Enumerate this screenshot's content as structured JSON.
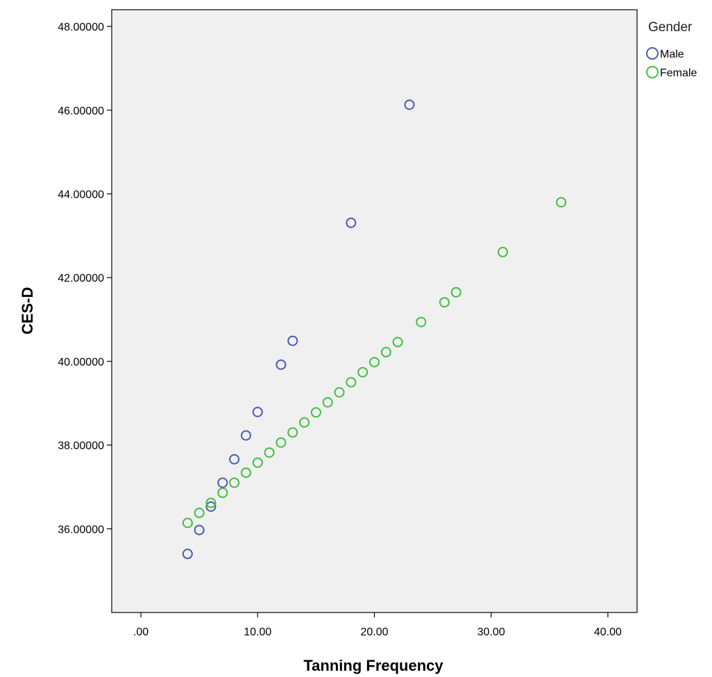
{
  "chart_data": {
    "type": "scatter",
    "xlabel": "Tanning Frequency",
    "ylabel": "CES-D",
    "xlim": [
      -2.5,
      42.5
    ],
    "ylim": [
      34.0,
      48.4
    ],
    "x_ticks": [
      ".00",
      "10.00",
      "20.00",
      "30.00",
      "40.00"
    ],
    "x_tick_values": [
      0,
      10,
      20,
      30,
      40
    ],
    "y_ticks": [
      "36.00000",
      "38.00000",
      "40.00000",
      "42.00000",
      "44.00000",
      "46.00000",
      "48.00000"
    ],
    "y_tick_values": [
      36,
      38,
      40,
      42,
      44,
      46,
      48
    ],
    "grid": false,
    "plot_background": "#f0f0f0",
    "legend": {
      "title": "Gender",
      "placement": "right"
    },
    "series": [
      {
        "name": "Male",
        "color": "#4b5aae",
        "points": [
          {
            "x": 4,
            "y": 35.4
          },
          {
            "x": 5,
            "y": 35.97
          },
          {
            "x": 6,
            "y": 36.53
          },
          {
            "x": 7,
            "y": 37.1
          },
          {
            "x": 8,
            "y": 37.66
          },
          {
            "x": 9,
            "y": 38.23
          },
          {
            "x": 10,
            "y": 38.79
          },
          {
            "x": 12,
            "y": 39.92
          },
          {
            "x": 13,
            "y": 40.49
          },
          {
            "x": 18,
            "y": 43.31
          },
          {
            "x": 23,
            "y": 46.13
          }
        ]
      },
      {
        "name": "Female",
        "color": "#3fbf3f",
        "points": [
          {
            "x": 4,
            "y": 36.14
          },
          {
            "x": 5,
            "y": 36.38
          },
          {
            "x": 6,
            "y": 36.62
          },
          {
            "x": 7,
            "y": 36.86
          },
          {
            "x": 8,
            "y": 37.1
          },
          {
            "x": 9,
            "y": 37.34
          },
          {
            "x": 10,
            "y": 37.58
          },
          {
            "x": 11,
            "y": 37.82
          },
          {
            "x": 12,
            "y": 38.06
          },
          {
            "x": 13,
            "y": 38.3
          },
          {
            "x": 14,
            "y": 38.54
          },
          {
            "x": 15,
            "y": 38.78
          },
          {
            "x": 16,
            "y": 39.02
          },
          {
            "x": 17,
            "y": 39.26
          },
          {
            "x": 18,
            "y": 39.5
          },
          {
            "x": 19,
            "y": 39.74
          },
          {
            "x": 20,
            "y": 39.98
          },
          {
            "x": 21,
            "y": 40.22
          },
          {
            "x": 22,
            "y": 40.46
          },
          {
            "x": 24,
            "y": 40.94
          },
          {
            "x": 26,
            "y": 41.41
          },
          {
            "x": 27,
            "y": 41.65
          },
          {
            "x": 31,
            "y": 42.61
          },
          {
            "x": 36,
            "y": 43.8
          }
        ]
      }
    ]
  }
}
